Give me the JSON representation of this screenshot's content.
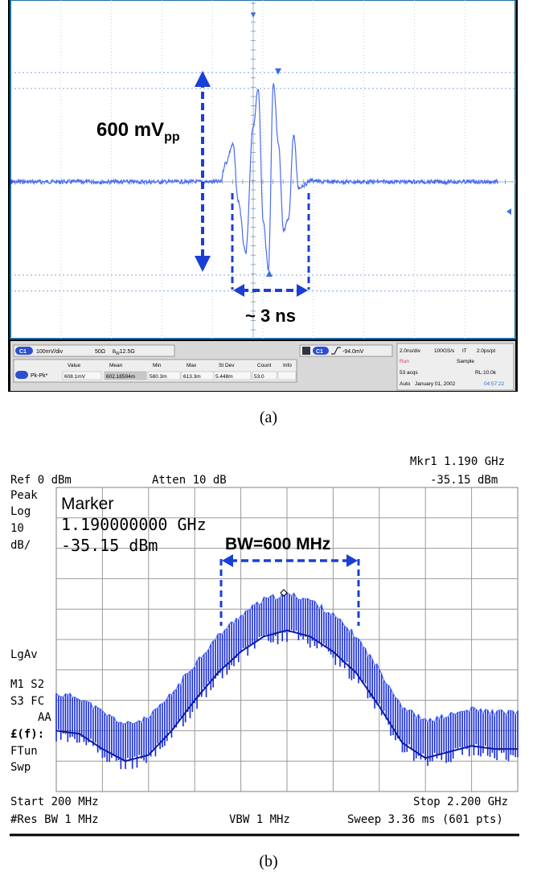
{
  "figure_a": {
    "caption": "(a)",
    "annotation_amplitude": "600 mV",
    "annotation_amplitude_sub": "pp",
    "annotation_width": "~ 3 ns",
    "status": {
      "ch_scale": "100mV/div",
      "impedance": "50Ω",
      "bandwidth": "12.5G",
      "trigger_level": "-94.0mV",
      "timebase": "2.0ns/div",
      "sample_rate": "100GS/s",
      "mode_it": "IT",
      "resolution": "2.0ps/pt",
      "run": "Run",
      "sample": "Sample",
      "acqs": "53 acqs",
      "record_length": "RL:10.0k",
      "auto": "Auto",
      "date": "January 01, 2002",
      "time": "04:57:22",
      "channel_badge": "C1",
      "trigger_badge": "C1",
      "meas_name": "Pk-Pk*",
      "meas_headers": [
        "Value",
        "Mean",
        "Min",
        "Max",
        "St Dev",
        "Count",
        "Info"
      ],
      "meas_values": [
        "608.1mV",
        "602.18594m",
        "580.3m",
        "613.3m",
        "5.448m",
        "53.0",
        ""
      ]
    },
    "colors": {
      "trace": "#4a6cf0",
      "annotation": "#1a3fd6",
      "grid": "#b9c6d8",
      "border": "#1e6ea6"
    }
  },
  "figure_b": {
    "caption": "(b)",
    "marker_header": "Mkr1  1.190 GHz",
    "marker_header_level": "-35.15 dBm",
    "ref_level": "Ref 0 dBm",
    "attenuation": "Atten 10 dB",
    "left_labels": [
      "Peak",
      "Log",
      "10",
      "dB/"
    ],
    "lgav": "LgAv",
    "m1s2": "M1  S2",
    "s3fc": "S3  FC",
    "aa": "AA",
    "ff": "£(f):",
    "ftun": "FTun",
    "swp": "Swp",
    "marker_title": "Marker",
    "marker_freq": "1.190000000 GHz",
    "marker_level": "-35.15 dBm",
    "bw_label": "BW=600 MHz",
    "start": "Start 200 MHz",
    "stop": "Stop 2.200 GHz",
    "res_bw": "#Res BW 1 MHz",
    "vbw": "VBW 1 MHz",
    "sweep": "Sweep 3.36 ms (601 pts)",
    "colors": {
      "trace": "#1428d8",
      "annotation": "#1a3fd6",
      "grid": "#9a9a9a"
    }
  },
  "chart_data": [
    {
      "type": "line",
      "x_unit": "ns",
      "y_unit": "mV",
      "x_scale_per_div": 2.0,
      "y_scale_per_div": 100,
      "grid": true,
      "series": [
        {
          "x": [
            -6.0,
            -3.0,
            -1.5,
            -1.0,
            -0.8,
            -0.5,
            -0.3,
            0.0,
            0.3,
            0.5,
            0.7,
            0.9,
            1.1,
            1.3,
            1.5,
            1.7,
            1.9,
            2.1,
            2.3,
            2.6,
            3.0,
            6.0,
            10.0
          ],
          "y": [
            0,
            0,
            0,
            0,
            60,
            120,
            -60,
            -230,
            180,
            300,
            -130,
            -280,
            320,
            120,
            -160,
            -120,
            150,
            -20,
            -10,
            5,
            0,
            0,
            0
          ]
        }
      ]
    },
    {
      "type": "line",
      "x_unit": "GHz",
      "y_unit": "dBm",
      "xlim": [
        0.2,
        2.2
      ],
      "ylim": [
        -100,
        0
      ],
      "grid": true,
      "series": [
        {
          "x": [
            0.2,
            0.3,
            0.4,
            0.5,
            0.6,
            0.7,
            0.8,
            0.9,
            1.0,
            1.1,
            1.2,
            1.3,
            1.4,
            1.5,
            1.6,
            1.7,
            1.8,
            1.9,
            2.0,
            2.1,
            2.2
          ],
          "y": [
            -71,
            -72,
            -77,
            -81,
            -79,
            -71,
            -61,
            -52,
            -45,
            -40,
            -38,
            -40,
            -45,
            -52,
            -63,
            -75,
            -80,
            -78,
            -76,
            -77,
            -77
          ]
        }
      ]
    }
  ]
}
